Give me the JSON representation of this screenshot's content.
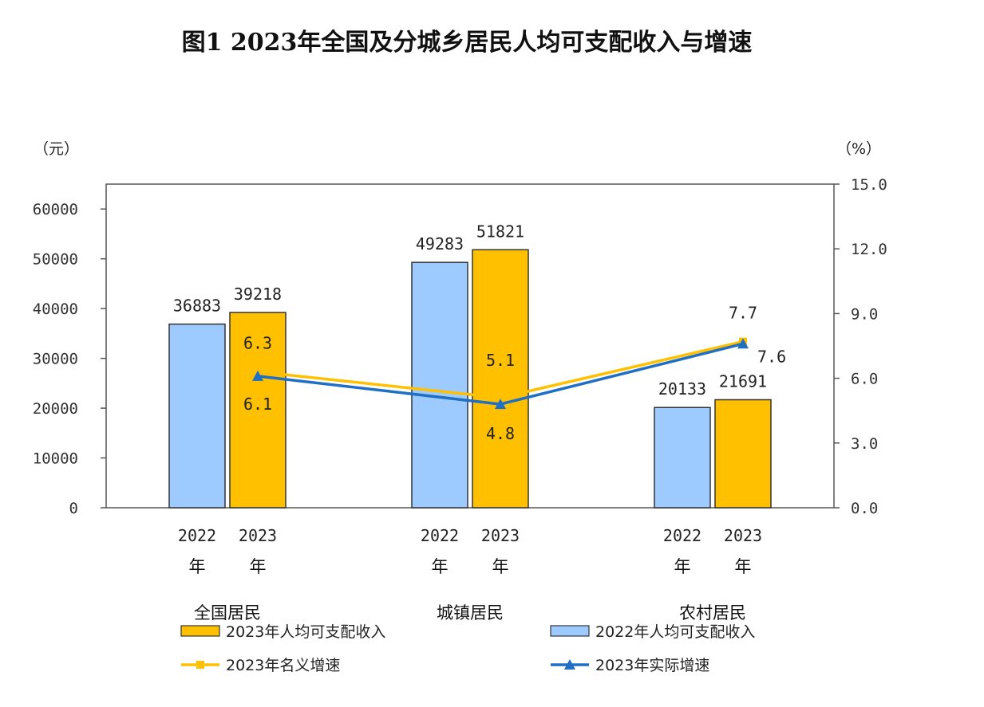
{
  "title": "图1    2023年全国及分城乡居民人均可支配收入与增速",
  "chart_data": {
    "type": "bar",
    "title": "图1    2023年全国及分城乡居民人均可支配收入与增速",
    "left_unit": "（元）",
    "right_unit": "（%）",
    "categories": [
      "全国居民",
      "城镇居民",
      "农村居民"
    ],
    "year_labels": [
      [
        "2022",
        "年"
      ],
      [
        "2023",
        "年"
      ]
    ],
    "left_axis": {
      "ylim": [
        0,
        65000
      ],
      "ticks": [
        "0",
        "10000",
        "20000",
        "30000",
        "40000",
        "50000",
        "60000"
      ]
    },
    "right_axis": {
      "ylim": [
        0,
        15
      ],
      "ticks": [
        "0.0",
        "3.0",
        "6.0",
        "9.0",
        "12.0",
        "15.0"
      ]
    },
    "series": [
      {
        "name": "2022年人均可支配收入",
        "kind": "bar",
        "color": "#9DCBFF",
        "values": [
          36883,
          49283,
          20133
        ],
        "labels": [
          "36883",
          "49283",
          "20133"
        ]
      },
      {
        "name": "2023年人均可支配收入",
        "kind": "bar",
        "color": "#FFC000",
        "values": [
          39218,
          51821,
          21691
        ],
        "labels": [
          "39218",
          "51821",
          "21691"
        ]
      },
      {
        "name": "2023年名义增速",
        "kind": "line",
        "axis": "right",
        "color": "#FFC000",
        "values": [
          6.3,
          5.1,
          7.7
        ],
        "labels": [
          "6.3",
          "5.1",
          "7.7"
        ]
      },
      {
        "name": "2023年实际增速",
        "kind": "line",
        "axis": "right",
        "color": "#1F6FC5",
        "values": [
          6.1,
          4.8,
          7.6
        ],
        "labels": [
          "6.1",
          "4.8",
          "7.6"
        ]
      }
    ],
    "grid": false,
    "legend": "bottom"
  }
}
